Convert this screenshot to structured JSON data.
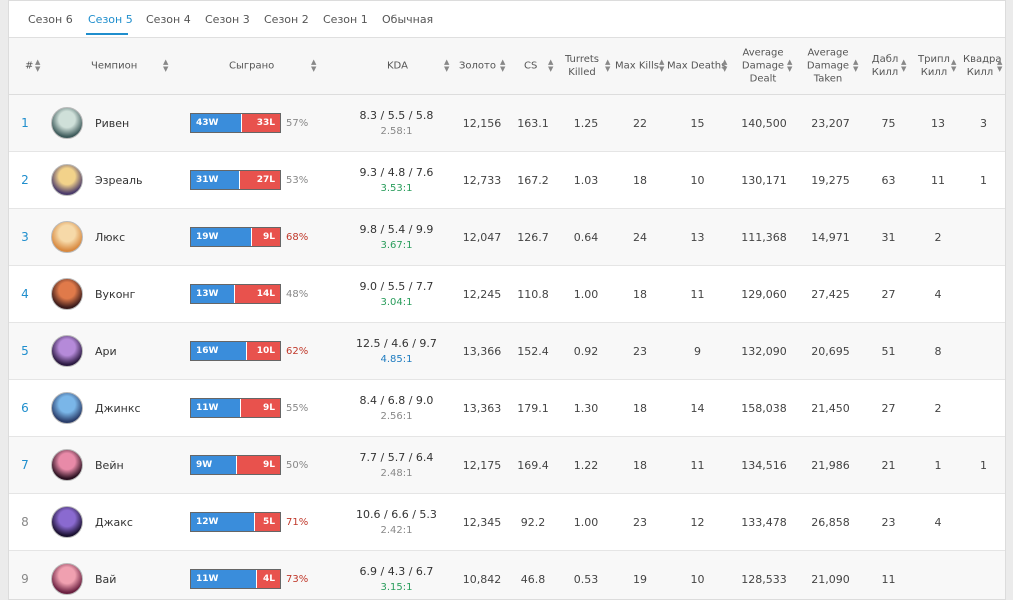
{
  "tabs": [
    {
      "label": "Сезон 6",
      "active": false
    },
    {
      "label": "Сезон 5",
      "active": true
    },
    {
      "label": "Сезон 4",
      "active": false
    },
    {
      "label": "Сезон 3",
      "active": false
    },
    {
      "label": "Сезон 2",
      "active": false
    },
    {
      "label": "Сезон 1",
      "active": false
    },
    {
      "label": "Обычная",
      "active": false
    }
  ],
  "headers": {
    "rank": "#",
    "champion": "Чемпион",
    "played": "Сыграно",
    "kda": "KDA",
    "gold": "Золото",
    "cs": "CS",
    "turrets": "Turrets Killed",
    "max_kills": "Max Kills",
    "max_deaths": "Max Deaths",
    "dmg_dealt": "Average Damage Dealt",
    "dmg_taken": "Average Damage Taken",
    "double": "Дабл Килл",
    "triple": "Трипл Килл",
    "quadra": "Квадра Килл"
  },
  "colors": {
    "accent": "#1f8ecd",
    "win_bar": "#3a8ddb",
    "loss_bar": "#e8524d",
    "pct_high": "#c0392b",
    "pct_low": "#888888",
    "ratio_gray": "#888888",
    "ratio_green": "#2a9d5c",
    "ratio_blue": "#1f7cc0"
  },
  "rows": [
    {
      "rank": "1",
      "icon": "riven-avatar-icon",
      "avatar": [
        "#cfe0d9",
        "#3d5a5a"
      ],
      "name": "Ривен",
      "wins": 43,
      "losses": 33,
      "win_label": "43W",
      "loss_label": "33L",
      "pct": "57%",
      "pct_tone": "low",
      "kda": "8.3 / 5.5 / 5.8",
      "ratio": "2.58:1",
      "ratio_tone": "gray",
      "gold": "12,156",
      "cs": "163.1",
      "turrets": "1.25",
      "max_kills": "22",
      "max_deaths": "15",
      "dmg_dealt": "140,500",
      "dmg_taken": "23,207",
      "double": "75",
      "triple": "13",
      "quadra": "3",
      "muted": false
    },
    {
      "rank": "2",
      "icon": "ezreal-avatar-icon",
      "avatar": [
        "#f2d28a",
        "#4a3a6a"
      ],
      "name": "Эзреаль",
      "wins": 31,
      "losses": 27,
      "win_label": "31W",
      "loss_label": "27L",
      "pct": "53%",
      "pct_tone": "low",
      "kda": "9.3 / 4.8 / 7.6",
      "ratio": "3.53:1",
      "ratio_tone": "green",
      "gold": "12,733",
      "cs": "167.2",
      "turrets": "1.03",
      "max_kills": "18",
      "max_deaths": "10",
      "dmg_dealt": "130,171",
      "dmg_taken": "19,275",
      "double": "63",
      "triple": "11",
      "quadra": "1",
      "muted": false
    },
    {
      "rank": "3",
      "icon": "lux-avatar-icon",
      "avatar": [
        "#f6d9a8",
        "#d8893f"
      ],
      "name": "Люкс",
      "wins": 19,
      "losses": 9,
      "win_label": "19W",
      "loss_label": "9L",
      "pct": "68%",
      "pct_tone": "high",
      "kda": "9.8 / 5.4 / 9.9",
      "ratio": "3.67:1",
      "ratio_tone": "green",
      "gold": "12,047",
      "cs": "126.7",
      "turrets": "0.64",
      "max_kills": "24",
      "max_deaths": "13",
      "dmg_dealt": "111,368",
      "dmg_taken": "14,971",
      "double": "31",
      "triple": "2",
      "quadra": "",
      "muted": false
    },
    {
      "rank": "4",
      "icon": "wukong-avatar-icon",
      "avatar": [
        "#e07a4a",
        "#3a1a1a"
      ],
      "name": "Вуконг",
      "wins": 13,
      "losses": 14,
      "win_label": "13W",
      "loss_label": "14L",
      "pct": "48%",
      "pct_tone": "low",
      "kda": "9.0 / 5.5 / 7.7",
      "ratio": "3.04:1",
      "ratio_tone": "green",
      "gold": "12,245",
      "cs": "110.8",
      "turrets": "1.00",
      "max_kills": "18",
      "max_deaths": "11",
      "dmg_dealt": "129,060",
      "dmg_taken": "27,425",
      "double": "27",
      "triple": "4",
      "quadra": "",
      "muted": false
    },
    {
      "rank": "5",
      "icon": "ahri-avatar-icon",
      "avatar": [
        "#b58ad9",
        "#2a1840"
      ],
      "name": "Ари",
      "wins": 16,
      "losses": 10,
      "win_label": "16W",
      "loss_label": "10L",
      "pct": "62%",
      "pct_tone": "high",
      "kda": "12.5 / 4.6 / 9.7",
      "ratio": "4.85:1",
      "ratio_tone": "blue",
      "gold": "13,366",
      "cs": "152.4",
      "turrets": "0.92",
      "max_kills": "23",
      "max_deaths": "9",
      "dmg_dealt": "132,090",
      "dmg_taken": "20,695",
      "double": "51",
      "triple": "8",
      "quadra": "",
      "muted": false
    },
    {
      "rank": "6",
      "icon": "jinx-avatar-icon",
      "avatar": [
        "#7ab6e8",
        "#2a3d6a"
      ],
      "name": "Джинкс",
      "wins": 11,
      "losses": 9,
      "win_label": "11W",
      "loss_label": "9L",
      "pct": "55%",
      "pct_tone": "low",
      "kda": "8.4 / 6.8 / 9.0",
      "ratio": "2.56:1",
      "ratio_tone": "gray",
      "gold": "13,363",
      "cs": "179.1",
      "turrets": "1.30",
      "max_kills": "18",
      "max_deaths": "14",
      "dmg_dealt": "158,038",
      "dmg_taken": "21,450",
      "double": "27",
      "triple": "2",
      "quadra": "",
      "muted": false
    },
    {
      "rank": "7",
      "icon": "vayne-avatar-icon",
      "avatar": [
        "#e88aa8",
        "#2a1020"
      ],
      "name": "Вейн",
      "wins": 9,
      "losses": 9,
      "win_label": "9W",
      "loss_label": "9L",
      "pct": "50%",
      "pct_tone": "low",
      "kda": "7.7 / 5.7 / 6.4",
      "ratio": "2.48:1",
      "ratio_tone": "gray",
      "gold": "12,175",
      "cs": "169.4",
      "turrets": "1.22",
      "max_kills": "18",
      "max_deaths": "11",
      "dmg_dealt": "134,516",
      "dmg_taken": "21,986",
      "double": "21",
      "triple": "1",
      "quadra": "1",
      "muted": false
    },
    {
      "rank": "8",
      "icon": "jax-avatar-icon",
      "avatar": [
        "#8a6ad0",
        "#1a1030"
      ],
      "name": "Джакс",
      "wins": 12,
      "losses": 5,
      "win_label": "12W",
      "loss_label": "5L",
      "pct": "71%",
      "pct_tone": "high",
      "kda": "10.6 / 6.6 / 5.3",
      "ratio": "2.42:1",
      "ratio_tone": "gray",
      "gold": "12,345",
      "cs": "92.2",
      "turrets": "1.00",
      "max_kills": "23",
      "max_deaths": "12",
      "dmg_dealt": "133,478",
      "dmg_taken": "26,858",
      "double": "23",
      "triple": "4",
      "quadra": "",
      "muted": true
    },
    {
      "rank": "9",
      "icon": "vi-avatar-icon",
      "avatar": [
        "#f0a0b0",
        "#6a2040"
      ],
      "name": "Вай",
      "wins": 11,
      "losses": 4,
      "win_label": "11W",
      "loss_label": "4L",
      "pct": "73%",
      "pct_tone": "high",
      "kda": "6.9 / 4.3 / 6.7",
      "ratio": "3.15:1",
      "ratio_tone": "green",
      "gold": "10,842",
      "cs": "46.8",
      "turrets": "0.53",
      "max_kills": "19",
      "max_deaths": "10",
      "dmg_dealt": "128,533",
      "dmg_taken": "21,090",
      "double": "11",
      "triple": "",
      "quadra": "",
      "muted": true
    }
  ]
}
